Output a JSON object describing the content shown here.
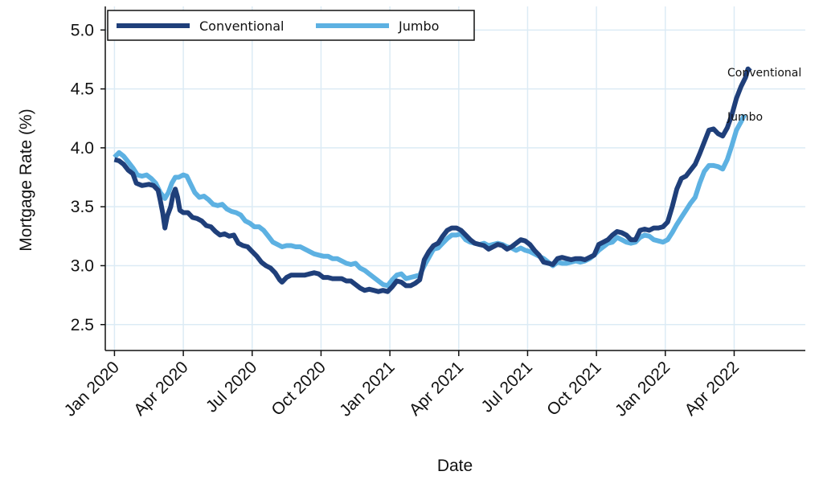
{
  "chart_data": {
    "type": "line",
    "title": "",
    "xlabel": "Date",
    "ylabel": "Mortgage Rate (%)",
    "ylim": [
      2.28,
      5.2
    ],
    "y_ticks": [
      2.5,
      3.0,
      3.5,
      4.0,
      4.5,
      5.0
    ],
    "y_tick_labels": [
      "2.5",
      "3.0",
      "3.5",
      "4.0",
      "4.5",
      "5.0"
    ],
    "x_range_months": [
      -0.4,
      30.1
    ],
    "x_ticks": [
      {
        "label": "Jan 2020",
        "month": 0
      },
      {
        "label": "Apr 2020",
        "month": 3
      },
      {
        "label": "Jul 2020",
        "month": 6
      },
      {
        "label": "Oct 2020",
        "month": 9
      },
      {
        "label": "Jan 2021",
        "month": 12
      },
      {
        "label": "Apr 2021",
        "month": 15
      },
      {
        "label": "Jul 2021",
        "month": 18
      },
      {
        "label": "Oct 2021",
        "month": 21
      },
      {
        "label": "Jan 2022",
        "month": 24
      },
      {
        "label": "Apr 2022",
        "month": 27
      }
    ],
    "grid": true,
    "legend_position": "top-left",
    "series": [
      {
        "name": "Conventional",
        "end_label": "Conventional",
        "color": "#1f3f7a",
        "points": [
          [
            0.0,
            3.9
          ],
          [
            0.2,
            3.89
          ],
          [
            0.4,
            3.86
          ],
          [
            0.6,
            3.81
          ],
          [
            0.8,
            3.78
          ],
          [
            0.95,
            3.7
          ],
          [
            1.2,
            3.68
          ],
          [
            1.5,
            3.69
          ],
          [
            1.7,
            3.68
          ],
          [
            1.9,
            3.64
          ],
          [
            2.0,
            3.55
          ],
          [
            2.1,
            3.45
          ],
          [
            2.2,
            3.32
          ],
          [
            2.3,
            3.42
          ],
          [
            2.45,
            3.5
          ],
          [
            2.55,
            3.6
          ],
          [
            2.65,
            3.65
          ],
          [
            2.75,
            3.58
          ],
          [
            2.85,
            3.47
          ],
          [
            3.0,
            3.45
          ],
          [
            3.2,
            3.45
          ],
          [
            3.4,
            3.41
          ],
          [
            3.6,
            3.4
          ],
          [
            3.8,
            3.38
          ],
          [
            4.0,
            3.34
          ],
          [
            4.2,
            3.33
          ],
          [
            4.4,
            3.29
          ],
          [
            4.6,
            3.26
          ],
          [
            4.8,
            3.27
          ],
          [
            5.0,
            3.25
          ],
          [
            5.2,
            3.26
          ],
          [
            5.4,
            3.19
          ],
          [
            5.6,
            3.17
          ],
          [
            5.8,
            3.16
          ],
          [
            6.0,
            3.12
          ],
          [
            6.2,
            3.08
          ],
          [
            6.4,
            3.03
          ],
          [
            6.6,
            3.0
          ],
          [
            6.8,
            2.98
          ],
          [
            7.0,
            2.94
          ],
          [
            7.2,
            2.88
          ],
          [
            7.3,
            2.86
          ],
          [
            7.5,
            2.9
          ],
          [
            7.7,
            2.92
          ],
          [
            7.9,
            2.92
          ],
          [
            8.1,
            2.92
          ],
          [
            8.3,
            2.92
          ],
          [
            8.5,
            2.93
          ],
          [
            8.7,
            2.94
          ],
          [
            8.9,
            2.93
          ],
          [
            9.1,
            2.9
          ],
          [
            9.3,
            2.9
          ],
          [
            9.5,
            2.89
          ],
          [
            9.7,
            2.89
          ],
          [
            9.9,
            2.89
          ],
          [
            10.1,
            2.87
          ],
          [
            10.3,
            2.87
          ],
          [
            10.5,
            2.84
          ],
          [
            10.7,
            2.81
          ],
          [
            10.9,
            2.79
          ],
          [
            11.1,
            2.8
          ],
          [
            11.3,
            2.79
          ],
          [
            11.5,
            2.78
          ],
          [
            11.7,
            2.79
          ],
          [
            11.9,
            2.78
          ],
          [
            12.1,
            2.82
          ],
          [
            12.3,
            2.87
          ],
          [
            12.5,
            2.86
          ],
          [
            12.7,
            2.83
          ],
          [
            12.9,
            2.83
          ],
          [
            13.1,
            2.85
          ],
          [
            13.3,
            2.88
          ],
          [
            13.5,
            3.05
          ],
          [
            13.7,
            3.12
          ],
          [
            13.9,
            3.17
          ],
          [
            14.1,
            3.19
          ],
          [
            14.3,
            3.25
          ],
          [
            14.5,
            3.3
          ],
          [
            14.7,
            3.32
          ],
          [
            14.9,
            3.32
          ],
          [
            15.1,
            3.3
          ],
          [
            15.3,
            3.26
          ],
          [
            15.5,
            3.22
          ],
          [
            15.7,
            3.19
          ],
          [
            15.9,
            3.18
          ],
          [
            16.1,
            3.17
          ],
          [
            16.3,
            3.14
          ],
          [
            16.5,
            3.16
          ],
          [
            16.7,
            3.18
          ],
          [
            16.9,
            3.17
          ],
          [
            17.1,
            3.14
          ],
          [
            17.3,
            3.16
          ],
          [
            17.5,
            3.19
          ],
          [
            17.7,
            3.22
          ],
          [
            17.9,
            3.21
          ],
          [
            18.1,
            3.18
          ],
          [
            18.3,
            3.13
          ],
          [
            18.5,
            3.09
          ],
          [
            18.7,
            3.03
          ],
          [
            18.9,
            3.02
          ],
          [
            19.1,
            3.01
          ],
          [
            19.3,
            3.06
          ],
          [
            19.5,
            3.07
          ],
          [
            19.7,
            3.06
          ],
          [
            19.9,
            3.05
          ],
          [
            20.1,
            3.06
          ],
          [
            20.3,
            3.06
          ],
          [
            20.5,
            3.05
          ],
          [
            20.7,
            3.07
          ],
          [
            20.9,
            3.09
          ],
          [
            21.1,
            3.18
          ],
          [
            21.3,
            3.2
          ],
          [
            21.5,
            3.22
          ],
          [
            21.7,
            3.26
          ],
          [
            21.9,
            3.29
          ],
          [
            22.1,
            3.28
          ],
          [
            22.3,
            3.26
          ],
          [
            22.5,
            3.22
          ],
          [
            22.7,
            3.22
          ],
          [
            22.9,
            3.3
          ],
          [
            23.1,
            3.31
          ],
          [
            23.3,
            3.3
          ],
          [
            23.5,
            3.32
          ],
          [
            23.7,
            3.32
          ],
          [
            23.9,
            3.33
          ],
          [
            24.1,
            3.37
          ],
          [
            24.3,
            3.5
          ],
          [
            24.5,
            3.65
          ],
          [
            24.7,
            3.74
          ],
          [
            24.9,
            3.76
          ],
          [
            25.1,
            3.81
          ],
          [
            25.3,
            3.86
          ],
          [
            25.5,
            3.95
          ],
          [
            25.7,
            4.05
          ],
          [
            25.9,
            4.15
          ],
          [
            26.1,
            4.16
          ],
          [
            26.3,
            4.12
          ],
          [
            26.5,
            4.1
          ],
          [
            26.7,
            4.17
          ],
          [
            26.9,
            4.28
          ],
          [
            27.1,
            4.42
          ],
          [
            27.3,
            4.52
          ],
          [
            27.5,
            4.6
          ],
          [
            27.6,
            4.67
          ],
          [
            27.7,
            4.65
          ]
        ]
      },
      {
        "name": "Jumbo",
        "end_label": "Jumbo",
        "color": "#5db1e2",
        "points": [
          [
            0.0,
            3.92
          ],
          [
            0.2,
            3.96
          ],
          [
            0.4,
            3.93
          ],
          [
            0.6,
            3.88
          ],
          [
            0.8,
            3.83
          ],
          [
            1.0,
            3.77
          ],
          [
            1.2,
            3.76
          ],
          [
            1.4,
            3.77
          ],
          [
            1.6,
            3.74
          ],
          [
            1.8,
            3.7
          ],
          [
            2.0,
            3.62
          ],
          [
            2.2,
            3.57
          ],
          [
            2.35,
            3.62
          ],
          [
            2.5,
            3.7
          ],
          [
            2.65,
            3.75
          ],
          [
            2.8,
            3.75
          ],
          [
            3.0,
            3.77
          ],
          [
            3.15,
            3.76
          ],
          [
            3.3,
            3.7
          ],
          [
            3.5,
            3.62
          ],
          [
            3.7,
            3.58
          ],
          [
            3.9,
            3.59
          ],
          [
            4.1,
            3.56
          ],
          [
            4.3,
            3.52
          ],
          [
            4.5,
            3.51
          ],
          [
            4.7,
            3.52
          ],
          [
            4.9,
            3.48
          ],
          [
            5.1,
            3.46
          ],
          [
            5.3,
            3.45
          ],
          [
            5.5,
            3.43
          ],
          [
            5.7,
            3.38
          ],
          [
            5.9,
            3.36
          ],
          [
            6.1,
            3.33
          ],
          [
            6.3,
            3.33
          ],
          [
            6.5,
            3.3
          ],
          [
            6.7,
            3.25
          ],
          [
            6.9,
            3.2
          ],
          [
            7.1,
            3.18
          ],
          [
            7.3,
            3.16
          ],
          [
            7.5,
            3.17
          ],
          [
            7.7,
            3.17
          ],
          [
            7.9,
            3.16
          ],
          [
            8.1,
            3.16
          ],
          [
            8.3,
            3.14
          ],
          [
            8.5,
            3.12
          ],
          [
            8.7,
            3.1
          ],
          [
            8.9,
            3.09
          ],
          [
            9.1,
            3.08
          ],
          [
            9.3,
            3.08
          ],
          [
            9.5,
            3.06
          ],
          [
            9.7,
            3.06
          ],
          [
            9.9,
            3.04
          ],
          [
            10.1,
            3.02
          ],
          [
            10.3,
            3.01
          ],
          [
            10.5,
            3.02
          ],
          [
            10.7,
            2.98
          ],
          [
            10.9,
            2.96
          ],
          [
            11.1,
            2.93
          ],
          [
            11.3,
            2.9
          ],
          [
            11.5,
            2.87
          ],
          [
            11.7,
            2.84
          ],
          [
            11.9,
            2.83
          ],
          [
            12.1,
            2.88
          ],
          [
            12.3,
            2.92
          ],
          [
            12.5,
            2.93
          ],
          [
            12.7,
            2.89
          ],
          [
            12.9,
            2.9
          ],
          [
            13.1,
            2.91
          ],
          [
            13.3,
            2.92
          ],
          [
            13.5,
            3.0
          ],
          [
            13.7,
            3.07
          ],
          [
            13.9,
            3.14
          ],
          [
            14.1,
            3.15
          ],
          [
            14.3,
            3.19
          ],
          [
            14.5,
            3.23
          ],
          [
            14.7,
            3.26
          ],
          [
            14.9,
            3.26
          ],
          [
            15.1,
            3.27
          ],
          [
            15.3,
            3.22
          ],
          [
            15.5,
            3.2
          ],
          [
            15.7,
            3.19
          ],
          [
            15.9,
            3.18
          ],
          [
            16.1,
            3.19
          ],
          [
            16.3,
            3.17
          ],
          [
            16.5,
            3.18
          ],
          [
            16.7,
            3.19
          ],
          [
            16.9,
            3.18
          ],
          [
            17.1,
            3.16
          ],
          [
            17.3,
            3.15
          ],
          [
            17.5,
            3.13
          ],
          [
            17.7,
            3.15
          ],
          [
            17.9,
            3.13
          ],
          [
            18.1,
            3.12
          ],
          [
            18.3,
            3.1
          ],
          [
            18.5,
            3.08
          ],
          [
            18.7,
            3.06
          ],
          [
            18.9,
            3.03
          ],
          [
            19.1,
            3.0
          ],
          [
            19.3,
            3.03
          ],
          [
            19.5,
            3.02
          ],
          [
            19.7,
            3.02
          ],
          [
            19.9,
            3.03
          ],
          [
            20.1,
            3.04
          ],
          [
            20.3,
            3.03
          ],
          [
            20.5,
            3.04
          ],
          [
            20.7,
            3.06
          ],
          [
            20.9,
            3.09
          ],
          [
            21.1,
            3.13
          ],
          [
            21.3,
            3.16
          ],
          [
            21.5,
            3.19
          ],
          [
            21.7,
            3.2
          ],
          [
            21.9,
            3.24
          ],
          [
            22.1,
            3.22
          ],
          [
            22.3,
            3.2
          ],
          [
            22.5,
            3.19
          ],
          [
            22.7,
            3.2
          ],
          [
            22.9,
            3.24
          ],
          [
            23.1,
            3.26
          ],
          [
            23.3,
            3.25
          ],
          [
            23.5,
            3.22
          ],
          [
            23.7,
            3.21
          ],
          [
            23.9,
            3.2
          ],
          [
            24.1,
            3.22
          ],
          [
            24.3,
            3.28
          ],
          [
            24.5,
            3.35
          ],
          [
            24.7,
            3.41
          ],
          [
            24.9,
            3.47
          ],
          [
            25.1,
            3.53
          ],
          [
            25.3,
            3.58
          ],
          [
            25.5,
            3.7
          ],
          [
            25.7,
            3.8
          ],
          [
            25.9,
            3.85
          ],
          [
            26.1,
            3.85
          ],
          [
            26.3,
            3.84
          ],
          [
            26.5,
            3.82
          ],
          [
            26.7,
            3.9
          ],
          [
            26.9,
            4.02
          ],
          [
            27.1,
            4.15
          ],
          [
            27.3,
            4.22
          ],
          [
            27.45,
            4.28
          ]
        ]
      }
    ]
  }
}
